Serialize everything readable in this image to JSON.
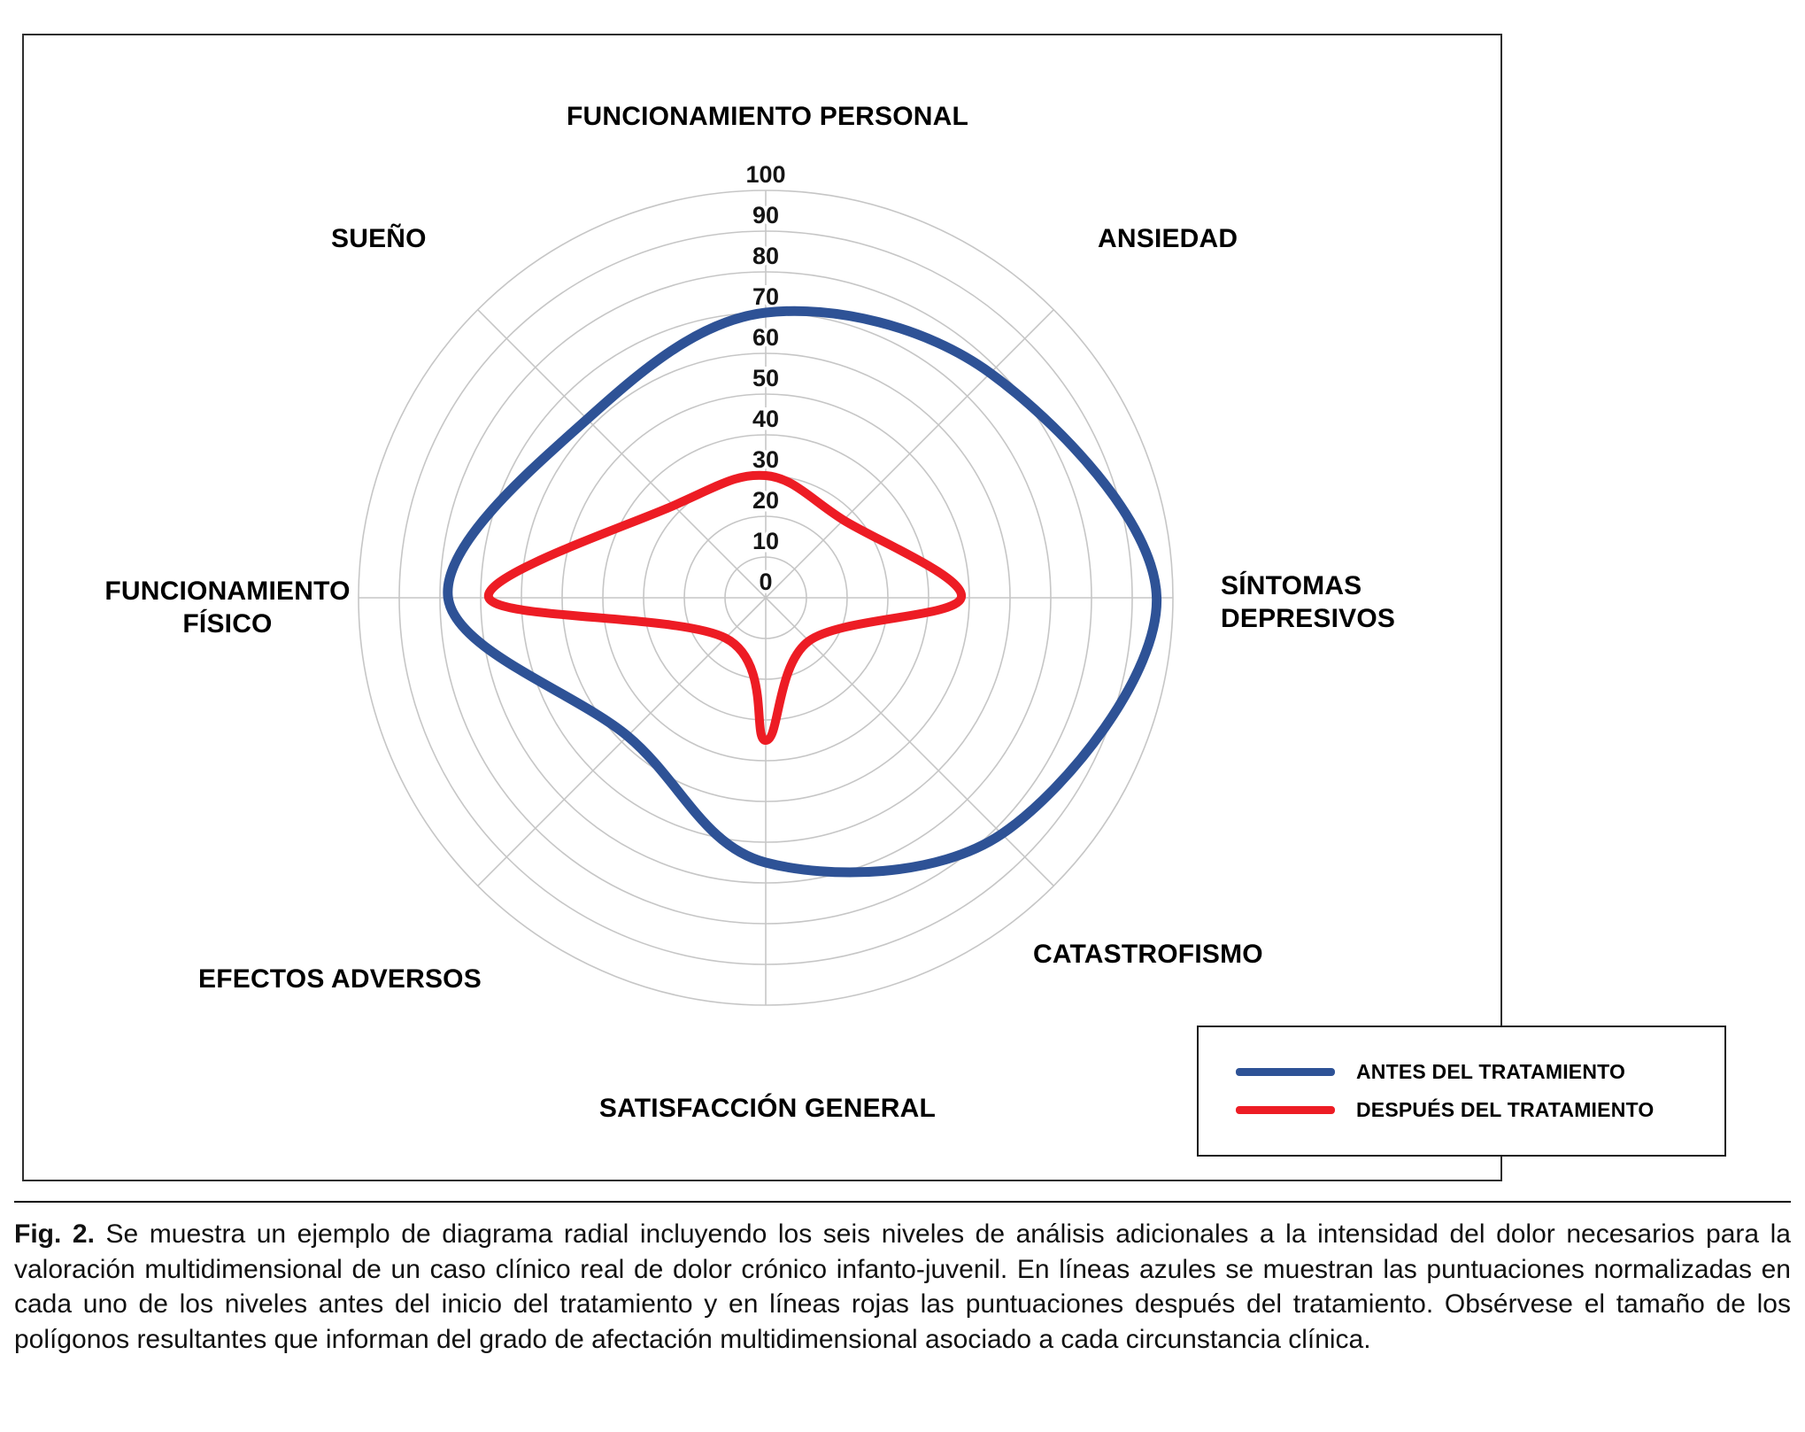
{
  "figure": {
    "caption_label": "Fig. 2.",
    "caption_text": "Se muestra un ejemplo de diagrama radial incluyendo los seis niveles de análisis adicionales a la intensidad del dolor necesarios para la valoración multidimensional de un caso clínico real de dolor crónico infanto-juvenil. En líneas azules se muestran las puntuaciones normalizadas en cada uno de los niveles antes del inicio del tratamiento y en líneas rojas las puntuaciones después del tratamiento. Obsérvese el tamaño de los polígonos resultantes que informan del grado de afectación multidimensional asociado a cada circunstancia clínica."
  },
  "chart_data": {
    "type": "radar",
    "categories": [
      "FUNCIONAMIENTO PERSONAL",
      "ANSIEDAD",
      "SÍNTOMAS DEPRESIVOS",
      "CATASTROFISMO",
      "SATISFACCIÓN GENERAL",
      "EFECTOS ADVERSOS",
      "FUNCIONAMIENTO FÍSICO",
      "SUEÑO"
    ],
    "series": [
      {
        "name": "ANTES DEL TRATAMIENTO",
        "color": "#2e5296",
        "values": [
          70,
          78,
          96,
          82,
          65,
          48,
          78,
          62
        ]
      },
      {
        "name": "DESPUÉS DEL TRATAMIENTO",
        "color": "#ed1c24",
        "values": [
          30,
          27,
          48,
          15,
          35,
          14,
          68,
          32
        ]
      }
    ],
    "ticks": [
      0,
      10,
      20,
      30,
      40,
      50,
      60,
      70,
      80,
      90,
      100
    ],
    "rmax": 100,
    "grid": "circular-rings-with-8-spokes",
    "grid_color": "#c6c6c6",
    "legend_position": "bottom-right"
  },
  "legend": {
    "items": [
      {
        "label": "ANTES DEL TRATAMIENTO",
        "color": "#2e5296"
      },
      {
        "label": "DESPUÉS DEL TRATAMIENTO",
        "color": "#ed1c24"
      }
    ]
  }
}
